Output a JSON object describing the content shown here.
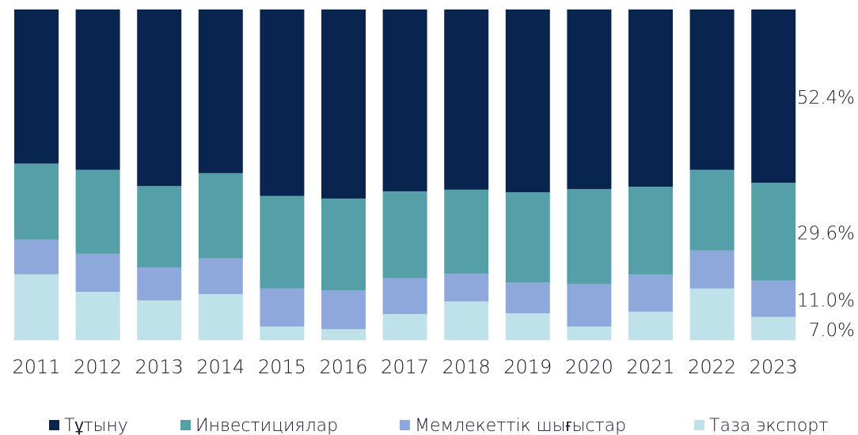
{
  "chart_data": {
    "type": "stacked_bar_100",
    "categories": [
      "2011",
      "2012",
      "2013",
      "2014",
      "2015",
      "2016",
      "2017",
      "2018",
      "2019",
      "2020",
      "2021",
      "2022",
      "2023"
    ],
    "series": [
      {
        "name": "Таза экспорт",
        "color": "#bfe1ea",
        "values": [
          19.9,
          14.6,
          12.0,
          13.9,
          4.1,
          3.3,
          7.9,
          11.7,
          8.1,
          4.1,
          8.6,
          15.6,
          7.0
        ],
        "value_labels": [
          null,
          null,
          null,
          null,
          null,
          null,
          null,
          null,
          null,
          null,
          null,
          null,
          "7.0%"
        ]
      },
      {
        "name": "Мемлекеттік шығыстар",
        "color": "#8fa8db",
        "values": [
          10.5,
          11.5,
          10.0,
          10.8,
          11.5,
          11.7,
          10.8,
          8.4,
          9.3,
          12.9,
          11.2,
          11.5,
          11.0
        ],
        "value_labels": [
          null,
          null,
          null,
          null,
          null,
          null,
          null,
          null,
          null,
          null,
          null,
          null,
          "11.0%"
        ]
      },
      {
        "name": "Инвестициялар",
        "color": "#55a0a8",
        "values": [
          23.0,
          25.4,
          24.6,
          25.8,
          28.0,
          27.8,
          26.3,
          25.4,
          27.3,
          28.7,
          26.6,
          24.4,
          29.6
        ],
        "value_labels": [
          null,
          null,
          null,
          null,
          null,
          null,
          null,
          null,
          null,
          null,
          null,
          null,
          "29.6%"
        ]
      },
      {
        "name": "Тұтыну",
        "color": "#0a2450",
        "values": [
          46.6,
          48.5,
          53.4,
          49.5,
          56.4,
          57.2,
          55.0,
          54.5,
          55.3,
          54.3,
          53.6,
          48.5,
          52.4
        ],
        "value_labels": [
          null,
          null,
          null,
          null,
          null,
          null,
          null,
          null,
          null,
          null,
          null,
          null,
          "52.4%"
        ]
      }
    ],
    "legend": "bottom"
  }
}
